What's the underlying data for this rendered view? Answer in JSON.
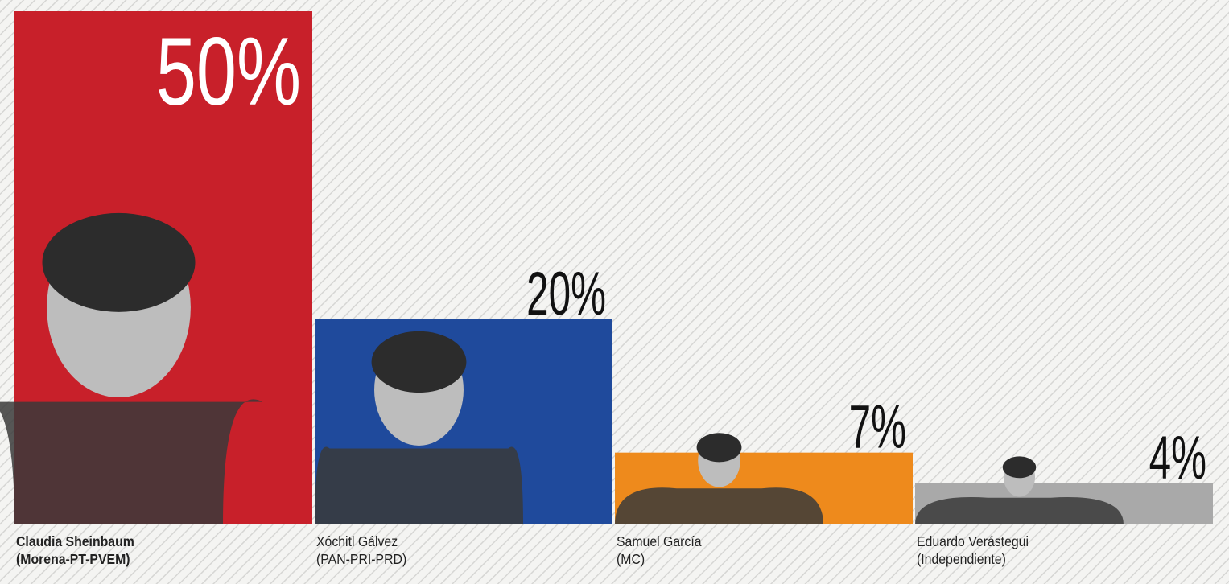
{
  "chart_data": {
    "type": "bar",
    "categories": [
      "Claudia Sheinbaum",
      "Xóchitl Gálvez",
      "Samuel García",
      "Eduardo Verástegui"
    ],
    "parties": [
      "(Morena-PT-PVEM)",
      "(PAN-PRI-PRD)",
      "(MC)",
      "(Independiente)"
    ],
    "values": [
      50,
      20,
      7,
      4
    ],
    "value_labels": [
      "50%",
      "20%",
      "7%",
      "4%"
    ],
    "colors": [
      "#c8202a",
      "#1f4a9c",
      "#ee8a1c",
      "#a9a9a9"
    ]
  }
}
